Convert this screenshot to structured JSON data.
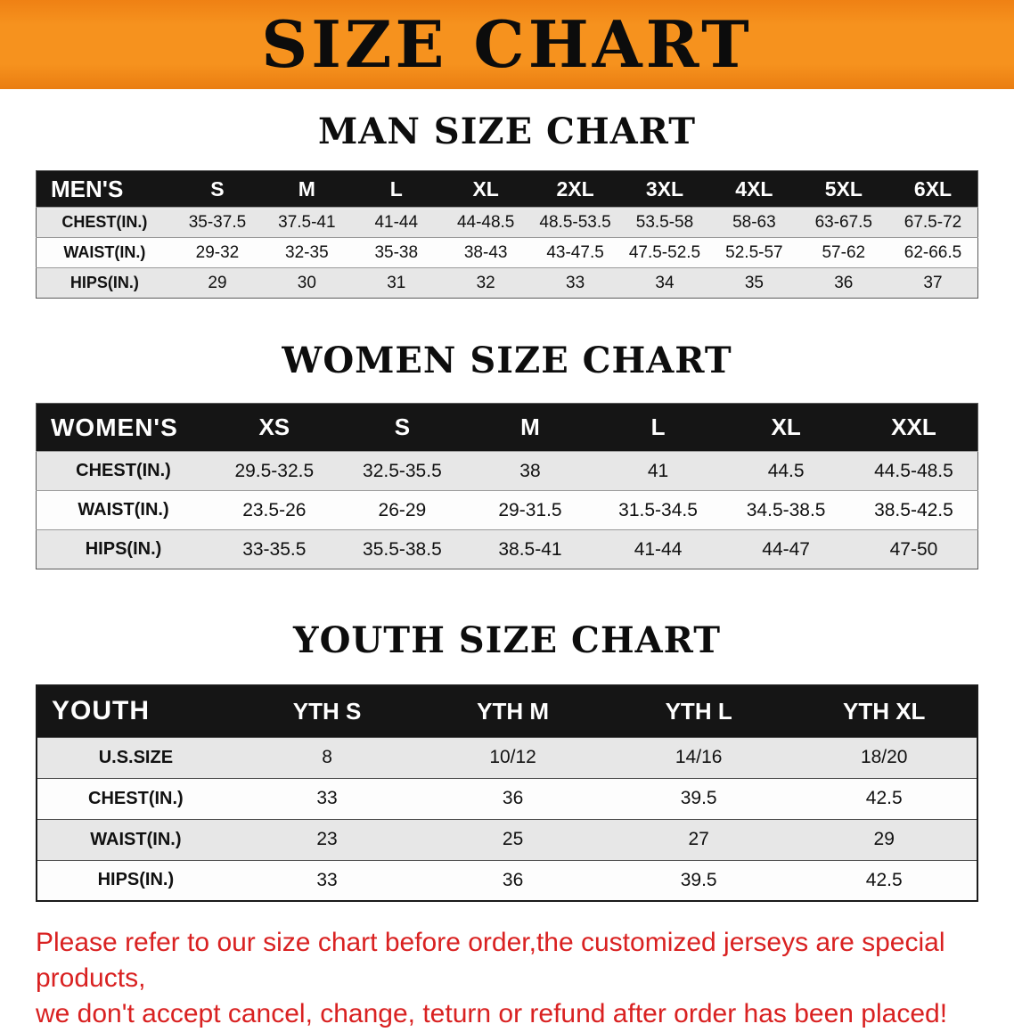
{
  "banner": {
    "title": "SIZE CHART"
  },
  "sections": [
    {
      "title": "MAN SIZE CHART",
      "table": {
        "header": [
          "MEN'S",
          "S",
          "M",
          "L",
          "XL",
          "2XL",
          "3XL",
          "4XL",
          "5XL",
          "6XL"
        ],
        "rows": [
          [
            "CHEST(IN.)",
            "35-37.5",
            "37.5-41",
            "41-44",
            "44-48.5",
            "48.5-53.5",
            "53.5-58",
            "58-63",
            "63-67.5",
            "67.5-72"
          ],
          [
            "WAIST(IN.)",
            "29-32",
            "32-35",
            "35-38",
            "38-43",
            "43-47.5",
            "47.5-52.5",
            "52.5-57",
            "57-62",
            "62-66.5"
          ],
          [
            "HIPS(IN.)",
            "29",
            "30",
            "31",
            "32",
            "33",
            "34",
            "35",
            "36",
            "37"
          ]
        ]
      }
    },
    {
      "title": "WOMEN SIZE CHART",
      "table": {
        "header": [
          "WOMEN'S",
          "XS",
          "S",
          "M",
          "L",
          "XL",
          "XXL"
        ],
        "rows": [
          [
            "CHEST(IN.)",
            "29.5-32.5",
            "32.5-35.5",
            "38",
            "41",
            "44.5",
            "44.5-48.5"
          ],
          [
            "WAIST(IN.)",
            "23.5-26",
            "26-29",
            "29-31.5",
            "31.5-34.5",
            "34.5-38.5",
            "38.5-42.5"
          ],
          [
            "HIPS(IN.)",
            "33-35.5",
            "35.5-38.5",
            "38.5-41",
            "41-44",
            "44-47",
            "47-50"
          ]
        ]
      }
    },
    {
      "title": "YOUTH SIZE CHART",
      "table": {
        "header": [
          "YOUTH",
          "YTH S",
          "YTH M",
          "YTH L",
          "YTH XL"
        ],
        "rows": [
          [
            "U.S.SIZE",
            "8",
            "10/12",
            "14/16",
            "18/20"
          ],
          [
            "CHEST(IN.)",
            "33",
            "36",
            "39.5",
            "42.5"
          ],
          [
            "WAIST(IN.)",
            "23",
            "25",
            "27",
            "29"
          ],
          [
            "HIPS(IN.)",
            "33",
            "36",
            "39.5",
            "42.5"
          ]
        ]
      }
    }
  ],
  "disclaimer": {
    "lines": [
      "Please refer to our size chart before order,the customized jerseys are special products,",
      "we don't accept cancel, change, teturn or refund after order has been placed!"
    ]
  },
  "colors": {
    "banner_bg": "#f6921e",
    "table_header_bg": "#151515",
    "row_alt_bg": "#e7e7e7",
    "disclaimer_text": "#d92121"
  }
}
